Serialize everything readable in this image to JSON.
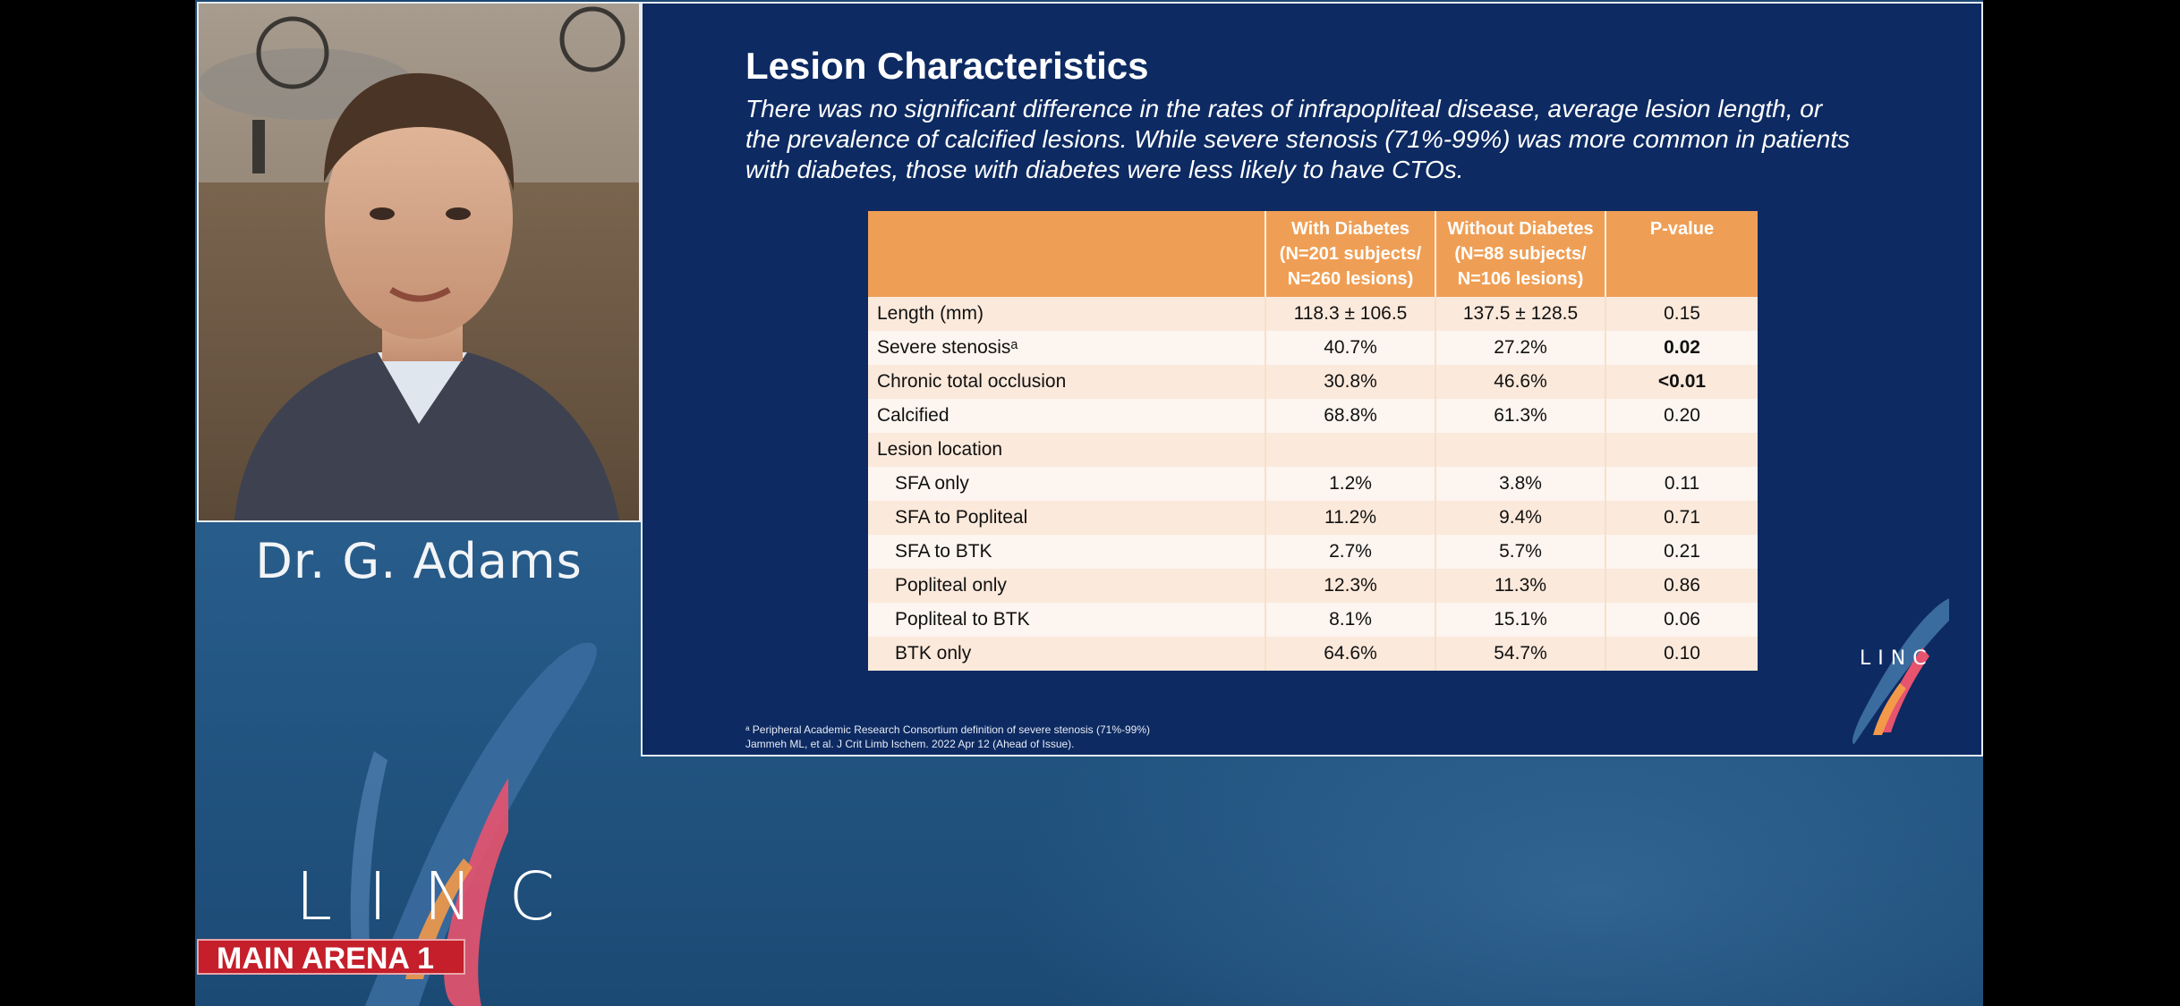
{
  "speaker": {
    "name": "Dr. G. Adams"
  },
  "branding": {
    "logo_text": "LINC",
    "arena_label": "MAIN ARENA 1",
    "slide_logo_text": "LINC"
  },
  "slide": {
    "title": "Lesion Characteristics",
    "subtitle": "There was no significant difference in the rates of infrapopliteal disease, average lesion length, or the prevalence of calcified lesions. While severe stenosis (71%-99%) was more common in patients with diabetes, those with diabetes were less likely to have CTOs.",
    "table": {
      "headers": [
        "",
        "With Diabetes (N=201 subjects/ N=260 lesions)",
        "Without Diabetes (N=88 subjects/ N=106 lesions)",
        "P-value"
      ],
      "header_lines": [
        [
          ""
        ],
        [
          "With Diabetes",
          "(N=201 subjects/",
          "N=260 lesions)"
        ],
        [
          "Without Diabetes",
          "(N=88 subjects/",
          "N=106 lesions)"
        ],
        [
          "P-value"
        ]
      ],
      "rows": [
        {
          "label": "Length (mm)",
          "with": "118.3 ± 106.5",
          "without": "137.5 ± 128.5",
          "p": "0.15"
        },
        {
          "label": "Severe stenosisᵃ",
          "with": "40.7%",
          "without": "27.2%",
          "p": "0.02"
        },
        {
          "label": "Chronic total occlusion",
          "with": "30.8%",
          "without": "46.6%",
          "p": "<0.01"
        },
        {
          "label": "Calcified",
          "with": "68.8%",
          "without": "61.3%",
          "p": "0.20"
        },
        {
          "label": "Lesion location",
          "with": "",
          "without": "",
          "p": ""
        },
        {
          "label": "SFA only",
          "with": "1.2%",
          "without": "3.8%",
          "p": "0.11"
        },
        {
          "label": "SFA to Popliteal",
          "with": "11.2%",
          "without": "9.4%",
          "p": "0.71"
        },
        {
          "label": "SFA to BTK",
          "with": "2.7%",
          "without": "5.7%",
          "p": "0.21"
        },
        {
          "label": "Popliteal only",
          "with": "12.3%",
          "without": "11.3%",
          "p": "0.86"
        },
        {
          "label": "Popliteal to BTK",
          "with": "8.1%",
          "without": "15.1%",
          "p": "0.06"
        },
        {
          "label": "BTK only",
          "with": "64.6%",
          "without": "54.7%",
          "p": "0.10"
        }
      ]
    },
    "footnote_1": "ᵃ Peripheral Academic Research Consortium definition of severe stenosis (71%-99%)",
    "footnote_2": "Jammeh ML, et al. J Crit Limb Ischem. 2022 Apr 12 (Ahead of Issue)."
  },
  "colors": {
    "slide_bg": "#0d2a62",
    "table_header": "#ef9f55",
    "arena_red": "#c41f2a",
    "stage_blue": "#2a5f8e"
  }
}
